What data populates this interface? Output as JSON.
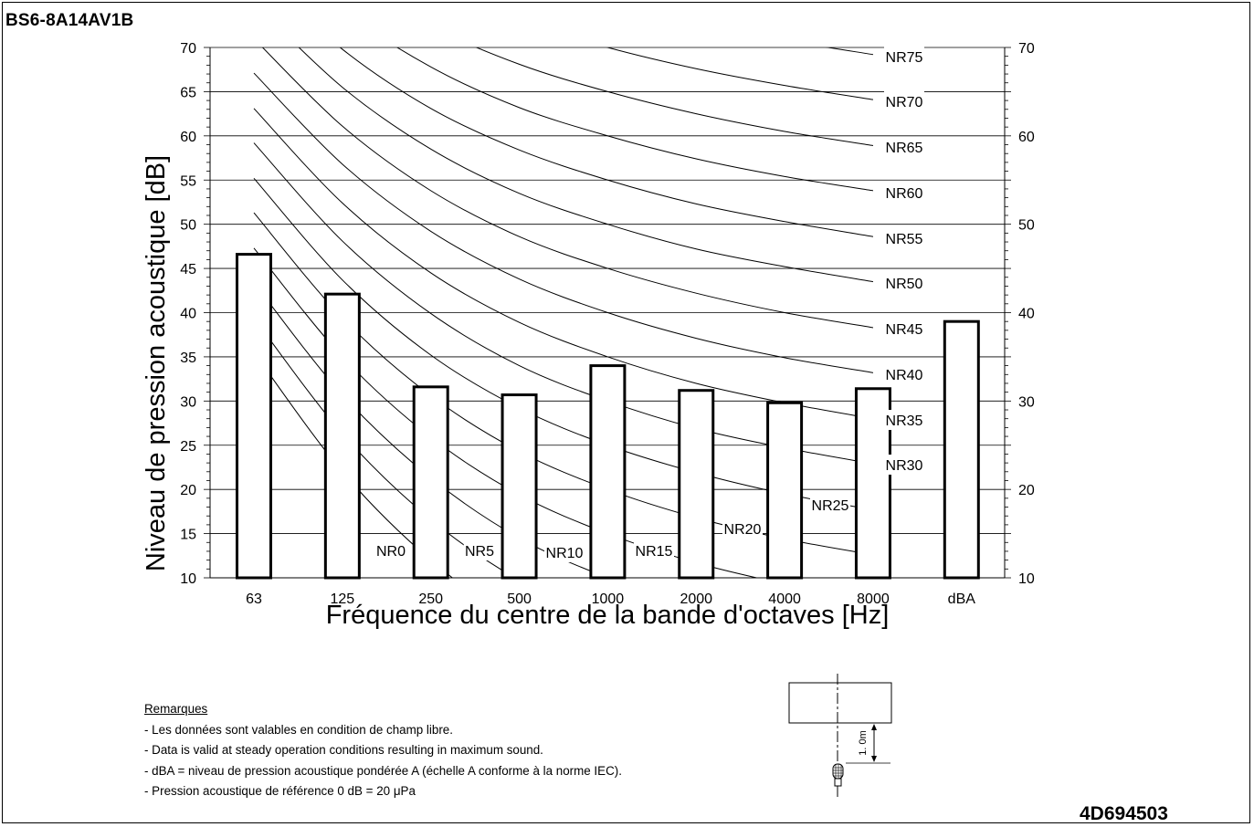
{
  "header": {
    "model": "BS6-8A14AV1B"
  },
  "footer": {
    "doc_number": "4D694503"
  },
  "notes": {
    "heading": "Remarques",
    "lines": [
      "- Les données sont valables en condition de champ libre.",
      "- Data is valid at steady operation conditions resulting in maximum sound.",
      "- dBA = niveau de pression acoustique pondérée A (échelle A conforme à la norme IEC).",
      "- Pression acoustique de référence 0 dB = 20 μPa"
    ]
  },
  "diagram": {
    "distance_label": "1. 0m"
  },
  "chart_data": {
    "type": "bar",
    "title": "",
    "xlabel": "Fréquence du centre de la bande d'octaves [Hz]",
    "ylabel": "Niveau de pression acoustique [dB]",
    "ylim": [
      10,
      70
    ],
    "yticks": [
      10,
      15,
      20,
      25,
      30,
      35,
      40,
      45,
      50,
      55,
      60,
      65,
      70
    ],
    "right_yticks": [
      10,
      20,
      30,
      40,
      50,
      60,
      70
    ],
    "grid": true,
    "categories": [
      "63",
      "125",
      "250",
      "500",
      "1000",
      "2000",
      "4000",
      "8000",
      "dBA"
    ],
    "values": [
      46.6,
      42.1,
      31.6,
      30.7,
      34.0,
      31.2,
      29.8,
      31.4,
      39.0
    ],
    "nr_curves": [
      {
        "name": "NR0",
        "points": [
          [
            0,
            35.5
          ],
          [
            1,
            22.0
          ],
          [
            2,
            12.0
          ],
          [
            3,
            4.8
          ],
          [
            4,
            0.0
          ],
          [
            5,
            -3.5
          ],
          [
            6,
            -6.1
          ],
          [
            7,
            -8.0
          ]
        ]
      },
      {
        "name": "NR5",
        "points": [
          [
            0,
            39.4
          ],
          [
            1,
            26.3
          ],
          [
            2,
            16.6
          ],
          [
            3,
            9.7
          ],
          [
            4,
            5.0
          ],
          [
            5,
            1.6
          ],
          [
            6,
            -1.0
          ],
          [
            7,
            -2.8
          ]
        ]
      },
      {
        "name": "NR10",
        "points": [
          [
            0,
            43.4
          ],
          [
            1,
            30.7
          ],
          [
            2,
            21.3
          ],
          [
            3,
            14.5
          ],
          [
            4,
            10.0
          ],
          [
            5,
            6.6
          ],
          [
            6,
            4.2
          ],
          [
            7,
            2.3
          ]
        ]
      },
      {
        "name": "NR15",
        "points": [
          [
            0,
            47.3
          ],
          [
            1,
            35.0
          ],
          [
            2,
            25.9
          ],
          [
            3,
            19.4
          ],
          [
            4,
            15.0
          ],
          [
            5,
            11.7
          ],
          [
            6,
            9.3
          ],
          [
            7,
            7.4
          ]
        ]
      },
      {
        "name": "NR20",
        "points": [
          [
            0,
            51.3
          ],
          [
            1,
            39.4
          ],
          [
            2,
            30.6
          ],
          [
            3,
            24.3
          ],
          [
            4,
            20.0
          ],
          [
            5,
            16.8
          ],
          [
            6,
            14.4
          ],
          [
            7,
            12.6
          ]
        ]
      },
      {
        "name": "NR25",
        "points": [
          [
            0,
            55.2
          ],
          [
            1,
            43.7
          ],
          [
            2,
            35.2
          ],
          [
            3,
            29.2
          ],
          [
            4,
            25.0
          ],
          [
            5,
            21.9
          ],
          [
            6,
            19.5
          ],
          [
            7,
            17.7
          ]
        ]
      },
      {
        "name": "NR30",
        "points": [
          [
            0,
            59.2
          ],
          [
            1,
            48.1
          ],
          [
            2,
            39.9
          ],
          [
            3,
            34.0
          ],
          [
            4,
            30.0
          ],
          [
            5,
            26.9
          ],
          [
            6,
            24.7
          ],
          [
            7,
            22.9
          ]
        ]
      },
      {
        "name": "NR35",
        "points": [
          [
            0,
            63.1
          ],
          [
            1,
            52.4
          ],
          [
            2,
            44.5
          ],
          [
            3,
            38.9
          ],
          [
            4,
            35.0
          ],
          [
            5,
            32.0
          ],
          [
            6,
            29.8
          ],
          [
            7,
            28.0
          ]
        ]
      },
      {
        "name": "NR40",
        "points": [
          [
            0,
            67.1
          ],
          [
            1,
            56.8
          ],
          [
            2,
            49.2
          ],
          [
            3,
            43.8
          ],
          [
            4,
            40.0
          ],
          [
            5,
            37.1
          ],
          [
            6,
            34.9
          ],
          [
            7,
            33.2
          ]
        ]
      },
      {
        "name": "NR45",
        "points": [
          [
            0,
            71.0
          ],
          [
            1,
            61.1
          ],
          [
            2,
            53.8
          ],
          [
            3,
            48.6
          ],
          [
            4,
            45.0
          ],
          [
            5,
            42.2
          ],
          [
            6,
            40.0
          ],
          [
            7,
            38.3
          ]
        ]
      },
      {
        "name": "NR50",
        "points": [
          [
            0,
            75.0
          ],
          [
            1,
            65.5
          ],
          [
            2,
            58.5
          ],
          [
            3,
            53.5
          ],
          [
            4,
            50.0
          ],
          [
            5,
            47.2
          ],
          [
            6,
            45.2
          ],
          [
            7,
            43.5
          ]
        ]
      },
      {
        "name": "NR55",
        "points": [
          [
            0,
            78.9
          ],
          [
            1,
            69.8
          ],
          [
            2,
            63.1
          ],
          [
            3,
            58.4
          ],
          [
            4,
            55.0
          ],
          [
            5,
            52.3
          ],
          [
            6,
            50.3
          ],
          [
            7,
            48.6
          ]
        ]
      },
      {
        "name": "NR60",
        "points": [
          [
            0,
            82.9
          ],
          [
            1,
            74.2
          ],
          [
            2,
            67.8
          ],
          [
            3,
            63.2
          ],
          [
            4,
            60.0
          ],
          [
            5,
            57.4
          ],
          [
            6,
            55.4
          ],
          [
            7,
            53.8
          ]
        ]
      },
      {
        "name": "NR65",
        "points": [
          [
            0,
            86.8
          ],
          [
            1,
            78.5
          ],
          [
            2,
            72.4
          ],
          [
            3,
            68.1
          ],
          [
            4,
            65.0
          ],
          [
            5,
            62.5
          ],
          [
            6,
            60.5
          ],
          [
            7,
            58.9
          ]
        ]
      },
      {
        "name": "NR70",
        "points": [
          [
            0,
            90.8
          ],
          [
            1,
            82.9
          ],
          [
            2,
            77.1
          ],
          [
            3,
            73.0
          ],
          [
            4,
            70.0
          ],
          [
            5,
            67.6
          ],
          [
            6,
            65.7
          ],
          [
            7,
            64.1
          ]
        ]
      },
      {
        "name": "NR75",
        "points": [
          [
            0,
            94.7
          ],
          [
            1,
            87.2
          ],
          [
            2,
            81.7
          ],
          [
            3,
            77.9
          ],
          [
            4,
            75.0
          ],
          [
            5,
            72.6
          ],
          [
            6,
            70.8
          ],
          [
            7,
            69.2
          ]
        ]
      }
    ]
  }
}
